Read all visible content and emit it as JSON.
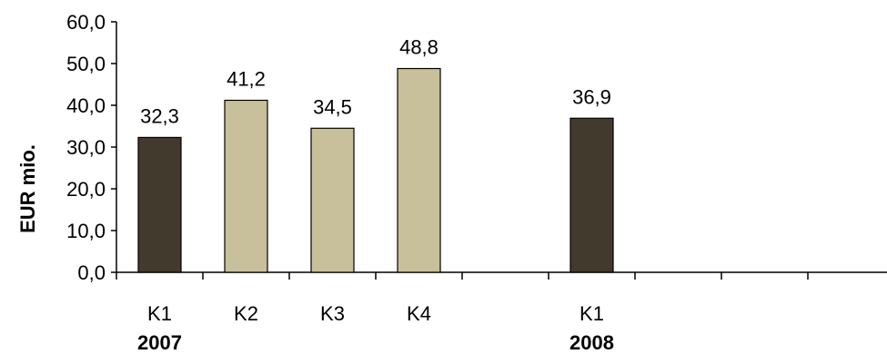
{
  "chart_data": {
    "type": "bar",
    "ylabel": "EUR mio.",
    "ylim": [
      0,
      60
    ],
    "yticks": [
      "0,0",
      "10,0",
      "20,0",
      "30,0",
      "40,0",
      "50,0",
      "60,0"
    ],
    "categories": [
      "K1",
      "K2",
      "K3",
      "K4",
      "",
      "K1",
      "",
      "",
      ""
    ],
    "values": [
      32.3,
      41.2,
      34.5,
      48.8,
      null,
      36.9,
      null,
      null,
      null
    ],
    "data_labels": [
      "32,3",
      "41,2",
      "34,5",
      "48,8",
      "",
      "36,9",
      "",
      "",
      ""
    ],
    "bar_colors": [
      "#433a2e",
      "#c8c09a",
      "#c8c09a",
      "#c8c09a",
      "",
      "#433a2e",
      "",
      "",
      ""
    ],
    "groups": [
      {
        "label": "2007",
        "category_index": 0
      },
      {
        "label": "2008",
        "category_index": 5
      }
    ],
    "grid": false,
    "legend": "none"
  }
}
